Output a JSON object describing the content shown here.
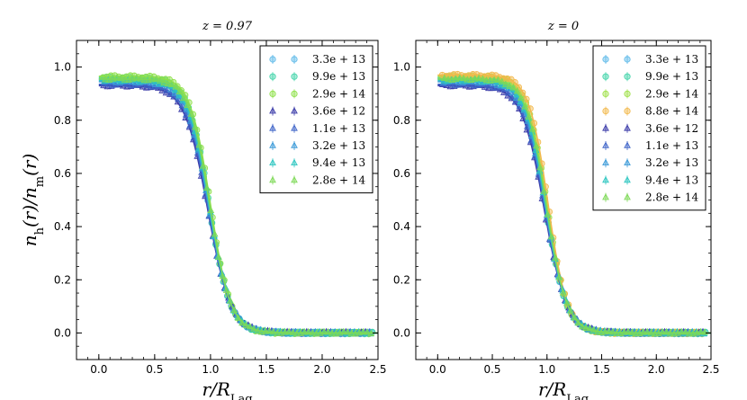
{
  "chart_data": [
    {
      "type": "line",
      "title": "z = 0.97",
      "xlabel": "r/R_Lag",
      "ylabel": "n_h(r)/n_m(r)",
      "xlim": [
        -0.2,
        2.5
      ],
      "ylim": [
        -0.1,
        1.1
      ],
      "xticks": [
        "0.0",
        "0.5",
        "1.0",
        "1.5",
        "2.0",
        "2.5"
      ],
      "yticks": [
        "0.0",
        "0.2",
        "0.4",
        "0.6",
        "0.8",
        "1.0"
      ],
      "legend_position": "top-right",
      "model": "plateau * (1 - tanh((r - r0)/w)) / 2",
      "series": [
        {
          "name": "3.3e+13",
          "marker": "circle",
          "color": "#5bb8e8",
          "plateau": 0.955,
          "r0": 0.985,
          "w": 0.19
        },
        {
          "name": "9.9e+13",
          "marker": "circle",
          "color": "#3fd3a8",
          "plateau": 0.96,
          "r0": 0.99,
          "w": 0.185
        },
        {
          "name": "2.9e+14",
          "marker": "circle",
          "color": "#8ee04a",
          "plateau": 0.965,
          "r0": 1.0,
          "w": 0.18
        },
        {
          "name": "3.6e+12",
          "marker": "triangle",
          "color": "#3a3aa8",
          "plateau": 0.93,
          "r0": 0.975,
          "w": 0.205
        },
        {
          "name": "1.1e+13",
          "marker": "triangle",
          "color": "#3f64c8",
          "plateau": 0.935,
          "r0": 0.98,
          "w": 0.2
        },
        {
          "name": "3.2e+13",
          "marker": "triangle",
          "color": "#3a9ad8",
          "plateau": 0.945,
          "r0": 0.985,
          "w": 0.195
        },
        {
          "name": "9.4e+13",
          "marker": "triangle",
          "color": "#2cc6c0",
          "plateau": 0.95,
          "r0": 0.99,
          "w": 0.19
        },
        {
          "name": "2.8e+14",
          "marker": "triangle",
          "color": "#7ed957",
          "plateau": 0.955,
          "r0": 0.995,
          "w": 0.185
        }
      ]
    },
    {
      "type": "line",
      "title": "z = 0",
      "xlabel": "r/R_Lag",
      "ylabel": "",
      "xlim": [
        -0.2,
        2.5
      ],
      "ylim": [
        -0.1,
        1.1
      ],
      "xticks": [
        "0.0",
        "0.5",
        "1.0",
        "1.5",
        "2.0",
        "2.5"
      ],
      "yticks": [
        "0.0",
        "0.2",
        "0.4",
        "0.6",
        "0.8",
        "1.0"
      ],
      "legend_position": "top-right",
      "model": "plateau * (1 - tanh((r - r0)/w)) / 2",
      "series": [
        {
          "name": "3.3e+13",
          "marker": "circle",
          "color": "#5bb8e8",
          "plateau": 0.955,
          "r0": 0.985,
          "w": 0.19
        },
        {
          "name": "9.9e+13",
          "marker": "circle",
          "color": "#3fd3a8",
          "plateau": 0.96,
          "r0": 0.99,
          "w": 0.185
        },
        {
          "name": "2.9e+14",
          "marker": "circle",
          "color": "#9fe04a",
          "plateau": 0.965,
          "r0": 1.0,
          "w": 0.18
        },
        {
          "name": "8.8e+14",
          "marker": "circle",
          "color": "#f2b84b",
          "plateau": 0.97,
          "r0": 1.01,
          "w": 0.175
        },
        {
          "name": "3.6e+12",
          "marker": "triangle",
          "color": "#3a3aa8",
          "plateau": 0.93,
          "r0": 0.975,
          "w": 0.205
        },
        {
          "name": "1.1e+13",
          "marker": "triangle",
          "color": "#3f64c8",
          "plateau": 0.935,
          "r0": 0.98,
          "w": 0.2
        },
        {
          "name": "3.2e+13",
          "marker": "triangle",
          "color": "#3a9ad8",
          "plateau": 0.945,
          "r0": 0.985,
          "w": 0.195
        },
        {
          "name": "9.4e+13",
          "marker": "triangle",
          "color": "#2cc6c0",
          "plateau": 0.95,
          "r0": 0.99,
          "w": 0.19
        },
        {
          "name": "2.8e+14",
          "marker": "triangle",
          "color": "#7ed957",
          "plateau": 0.955,
          "r0": 0.995,
          "w": 0.185
        }
      ]
    }
  ]
}
